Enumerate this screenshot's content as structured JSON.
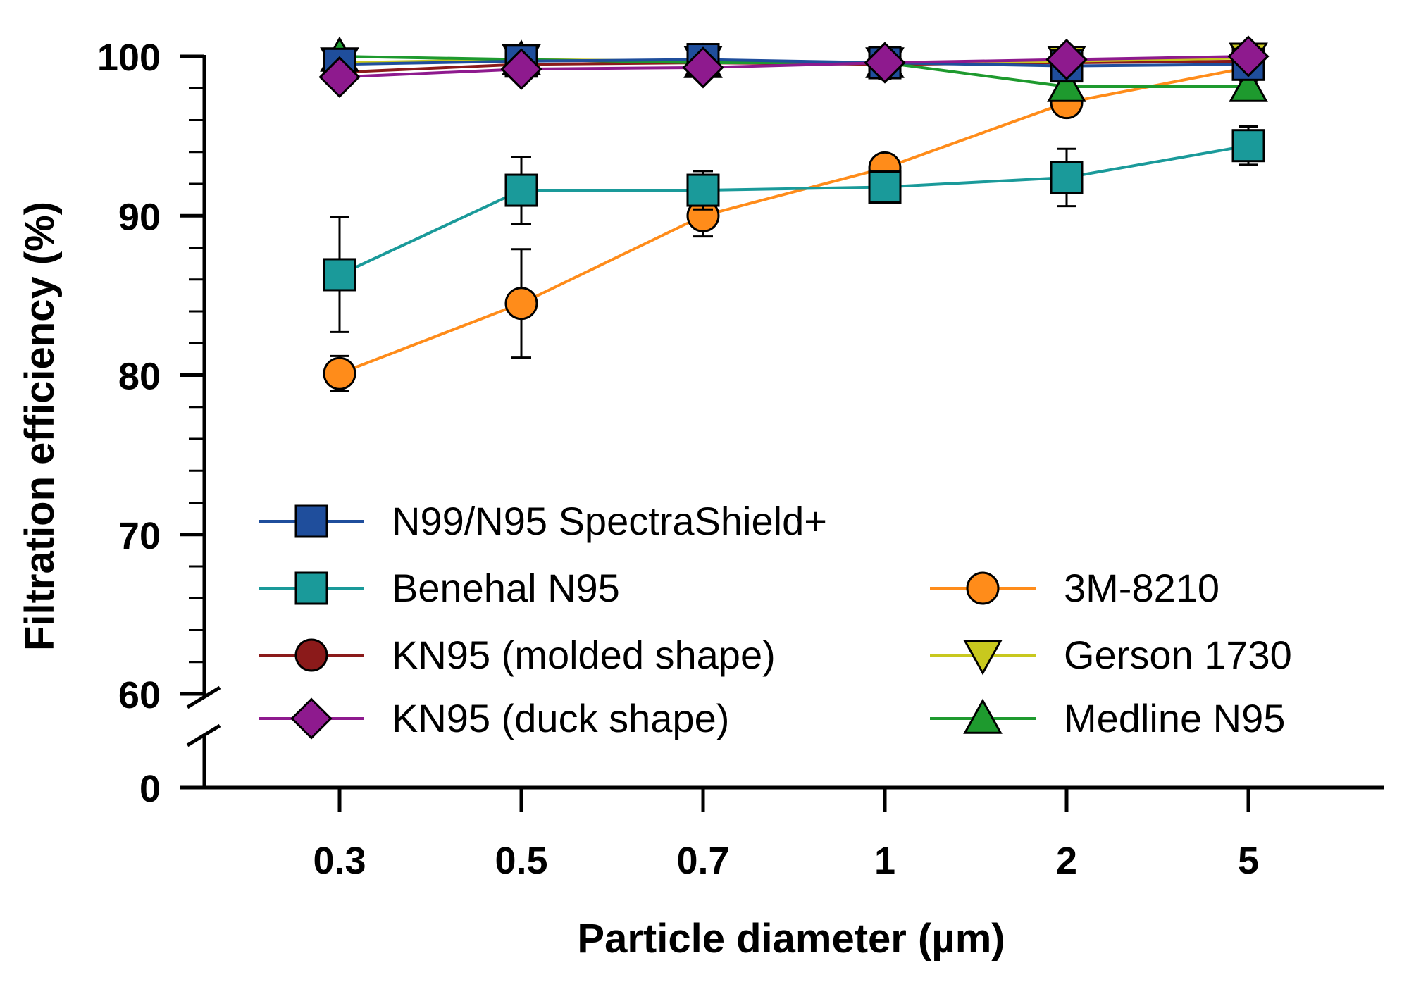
{
  "chart_data": {
    "type": "line",
    "title": "",
    "xlabel": "Particle diameter (µm)",
    "ylabel": "Filtration efficiency (%)",
    "categories": [
      "0.3",
      "0.5",
      "0.7",
      "1",
      "2",
      "5"
    ],
    "y_ticks": [
      "0",
      "60",
      "70",
      "80",
      "90",
      "100"
    ],
    "ylim": [
      60,
      100
    ],
    "y_axis_break": "between 0 and 60",
    "legend_position": "bottom-center",
    "series": [
      {
        "name": "N99/N95 SpectraShield+",
        "marker": "square",
        "color": "#1f4e9c",
        "values": [
          99.5,
          99.7,
          99.8,
          99.6,
          99.4,
          99.5
        ],
        "errors": [
          0,
          0,
          0,
          0,
          0,
          0
        ]
      },
      {
        "name": "Benehal N95",
        "marker": "square",
        "color": "#1a9a9a",
        "values": [
          86.3,
          91.6,
          91.6,
          91.8,
          92.4,
          94.4
        ],
        "errors": [
          3.6,
          2.1,
          1.2,
          0,
          1.8,
          1.2
        ]
      },
      {
        "name": "3M-8210",
        "marker": "circle",
        "color": "#ff8c1a",
        "values": [
          80.1,
          84.5,
          90.0,
          93.0,
          97.1,
          99.3
        ],
        "errors": [
          1.1,
          3.4,
          1.3,
          0,
          0,
          1.1
        ]
      },
      {
        "name": "KN95 (molded shape)",
        "marker": "circle",
        "color": "#8b1a1a",
        "values": [
          99.0,
          99.5,
          99.6,
          99.5,
          99.6,
          99.7
        ],
        "errors": [
          0,
          0,
          0,
          0,
          0,
          0
        ]
      },
      {
        "name": "Gerson 1730",
        "marker": "triangle-down",
        "color": "#c8c81e",
        "values": [
          99.6,
          99.8,
          99.7,
          99.6,
          99.7,
          99.9
        ],
        "errors": [
          0,
          0,
          0,
          0,
          0,
          0
        ]
      },
      {
        "name": "KN95 (duck shape)",
        "marker": "diamond",
        "color": "#8e1a8e",
        "values": [
          98.7,
          99.2,
          99.3,
          99.6,
          99.8,
          100.0
        ],
        "errors": [
          0,
          0,
          0,
          0,
          0,
          0
        ]
      },
      {
        "name": "Medline N95",
        "marker": "triangle-up",
        "color": "#1e9a2e",
        "values": [
          100.0,
          99.8,
          99.6,
          99.6,
          98.1,
          98.1
        ],
        "errors": [
          0,
          0,
          0,
          0,
          0,
          0
        ]
      }
    ],
    "legend_order": [
      "N99/N95 SpectraShield+",
      "Benehal N95",
      "KN95 (molded shape)",
      "KN95 (duck shape)",
      "3M-8210",
      "Gerson 1730",
      "Medline N95"
    ]
  }
}
